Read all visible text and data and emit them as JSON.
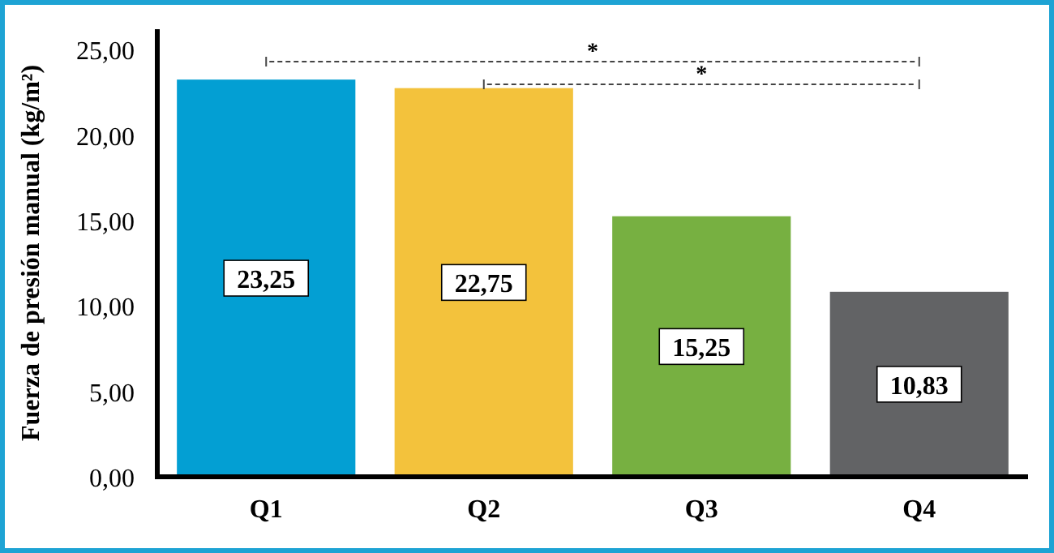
{
  "chart_data": {
    "type": "bar",
    "ylabel": "Fuerza de presión manual (kg/m²)",
    "categories": [
      "Q1",
      "Q2",
      "Q3",
      "Q4"
    ],
    "values": [
      23.25,
      22.75,
      15.25,
      10.83
    ],
    "colors": [
      "#039fd3",
      "#f3c23c",
      "#77b041",
      "#626365"
    ],
    "value_labels": [
      "23,25",
      "22,75",
      "15,25",
      "10,83"
    ],
    "ylim": [
      0,
      26.2
    ],
    "yticks": [
      {
        "value": 0,
        "label": "0,00"
      },
      {
        "value": 5,
        "label": "5,00"
      },
      {
        "value": 10,
        "label": "10,00"
      },
      {
        "value": 15,
        "label": "15,00"
      },
      {
        "value": 20,
        "label": "20,00"
      },
      {
        "value": 25,
        "label": "25,00"
      }
    ],
    "grid": false,
    "annotations": [
      "*",
      "*"
    ]
  }
}
